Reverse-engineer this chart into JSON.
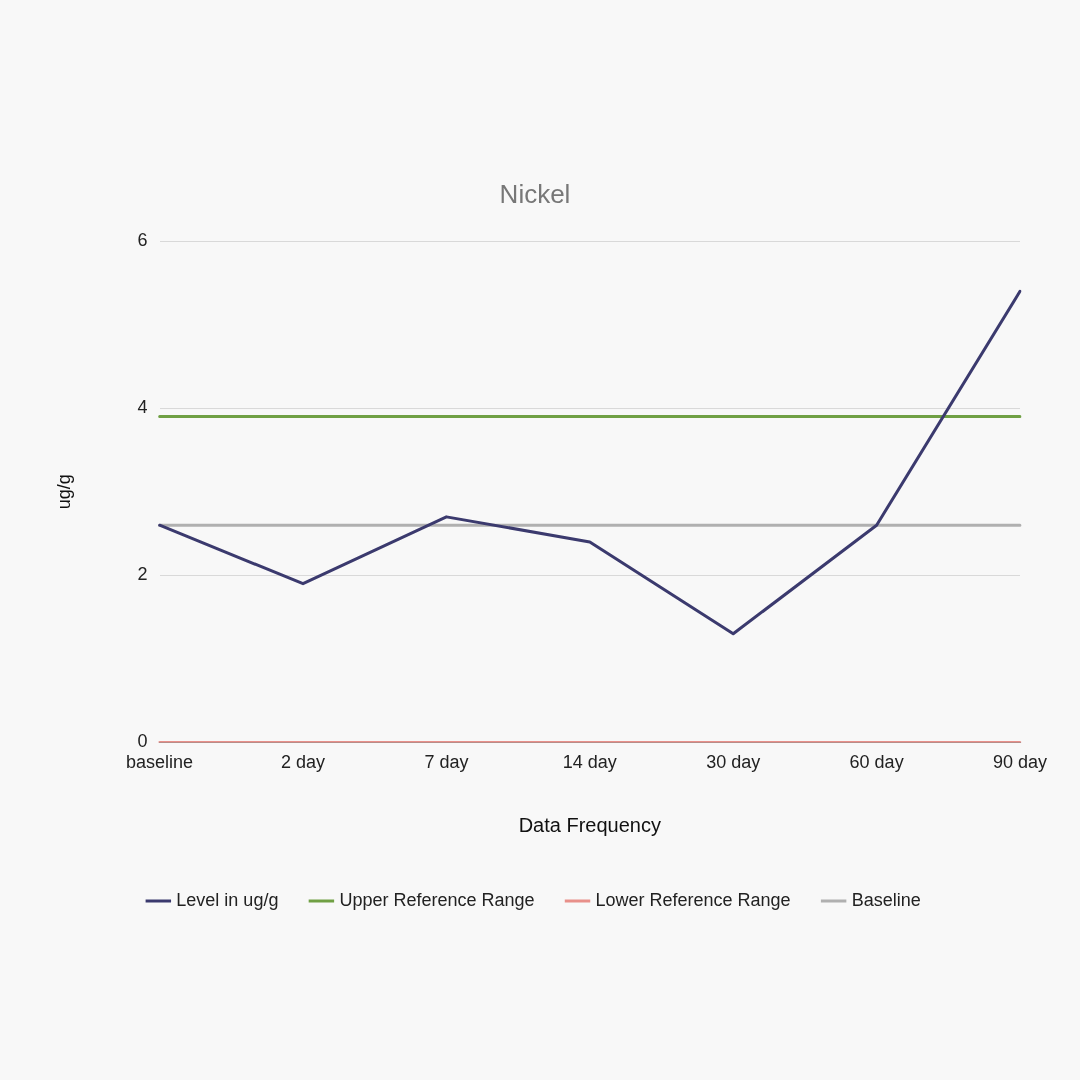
{
  "chart_data": {
    "type": "line",
    "title": "Nickel",
    "xlabel": "Data Frequency",
    "ylabel": "ug/g",
    "categories": [
      "baseline",
      "2 day",
      "7 day",
      "14 day",
      "30 day",
      "60 day",
      "90 day"
    ],
    "series": [
      {
        "name": "Level in ug/g",
        "color": "#3b3a6e",
        "values": [
          2.6,
          1.9,
          2.7,
          2.4,
          1.3,
          2.6,
          5.4
        ]
      },
      {
        "name": "Upper Reference Range",
        "color": "#70a044",
        "values": [
          3.9,
          3.9,
          3.9,
          3.9,
          3.9,
          3.9,
          3.9
        ]
      },
      {
        "name": "Lower Reference Range",
        "color": "#e8908a",
        "values": [
          0,
          0,
          0,
          0,
          0,
          0,
          0
        ]
      },
      {
        "name": "Baseline",
        "color": "#b0b0b0",
        "values": [
          2.6,
          2.6,
          2.6,
          2.6,
          2.6,
          2.6,
          2.6
        ]
      }
    ],
    "ylim": [
      0,
      6
    ],
    "yticks": [
      0,
      2,
      4,
      6
    ],
    "grid": "y",
    "legend": "bottom",
    "marker": "none",
    "line_style": "solid"
  }
}
